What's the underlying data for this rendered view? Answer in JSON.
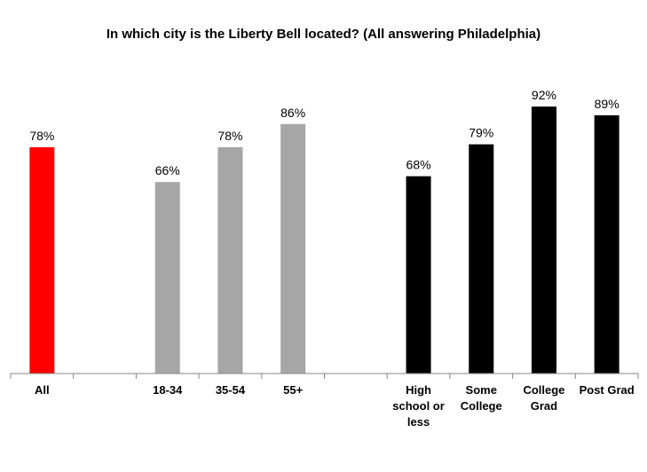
{
  "chart_data": {
    "type": "bar",
    "title": "In which city is the Liberty Bell located? (All answering Philadelphia)",
    "xlabel": "",
    "ylabel": "",
    "ylim": [
      0,
      100
    ],
    "grid": false,
    "legend": "none",
    "categories": [
      "All",
      "",
      "18-34",
      "35-54",
      "55+",
      "",
      "High school or less",
      "Some College",
      "College Grad",
      "Post Grad"
    ],
    "category_lines": [
      [
        "All"
      ],
      [],
      [
        "18-34"
      ],
      [
        "35-54"
      ],
      [
        "55+"
      ],
      [],
      [
        "High",
        "school or",
        "less"
      ],
      [
        "Some",
        "College"
      ],
      [
        "College",
        "Grad"
      ],
      [
        "Post Grad"
      ]
    ],
    "values": [
      78,
      null,
      66,
      78,
      86,
      null,
      68,
      79,
      92,
      89
    ],
    "value_labels": [
      "78%",
      "",
      "66%",
      "78%",
      "86%",
      "",
      "68%",
      "79%",
      "92%",
      "89%"
    ],
    "bar_colors": [
      "#ff0000",
      null,
      "#a6a6a6",
      "#a6a6a6",
      "#a6a6a6",
      null,
      "#000000",
      "#000000",
      "#000000",
      "#000000"
    ]
  }
}
